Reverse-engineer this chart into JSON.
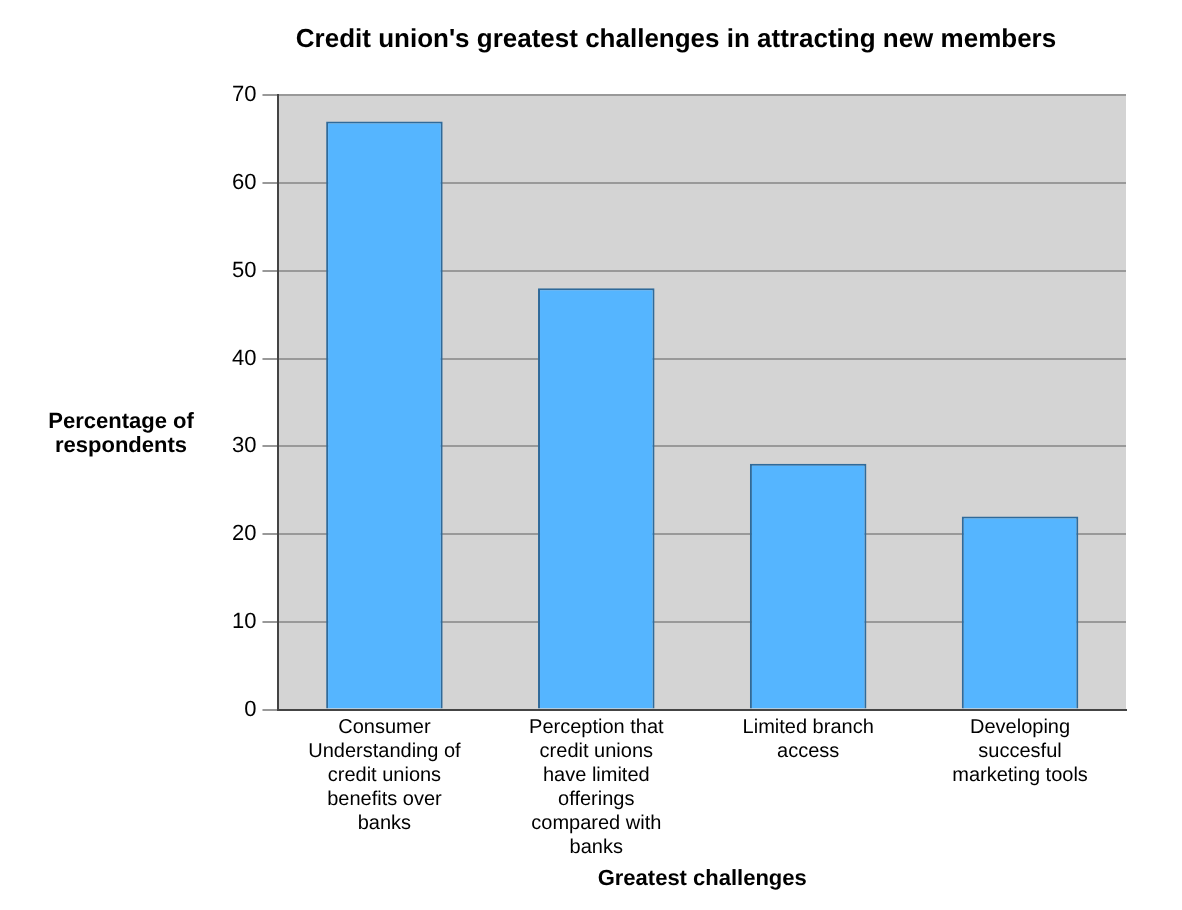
{
  "chart_data": {
    "type": "bar",
    "title": "Credit union's greatest challenges in attracting new members",
    "xlabel": "Greatest challenges",
    "ylabel": "Percentage of respondents",
    "categories": [
      "Consumer Understanding of credit unions benefits over banks",
      "Perception that credit unions have limited offerings compared with banks",
      "Limited branch access",
      "Developing succesful marketing tools"
    ],
    "values": [
      67,
      48,
      28,
      22
    ],
    "color": "#55b5ff",
    "ylim": [
      0,
      70
    ],
    "yticks": [
      0,
      10,
      20,
      30,
      40,
      50,
      60,
      70
    ],
    "grid": "y",
    "legend": false
  }
}
